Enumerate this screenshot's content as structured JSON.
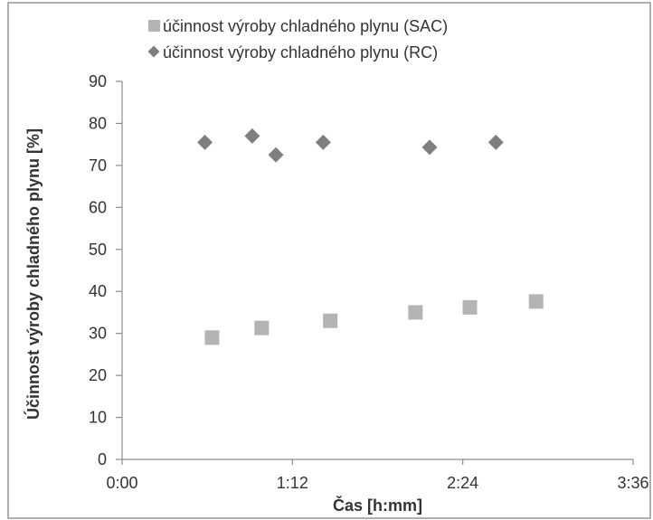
{
  "colors": {
    "sac": "#b4b4b4",
    "rc": "#7f7f7f",
    "axis": "#8c8c8c",
    "text": "#333333"
  },
  "chart_data": {
    "type": "scatter",
    "xlabel": "Čas [h:mm]",
    "ylabel": "Účinnost výroby chladného plynu [%]",
    "x_unit": "h:mm",
    "xlim": [
      "0:00",
      "3:36"
    ],
    "ylim": [
      0,
      90
    ],
    "x_ticks": [
      "0:00",
      "1:12",
      "2:24",
      "3:36"
    ],
    "y_ticks": [
      0,
      10,
      20,
      30,
      40,
      50,
      60,
      70,
      80,
      90
    ],
    "grid": false,
    "legend_position": "top",
    "series": [
      {
        "name": "účinnost výroby chladného plynu (SAC)",
        "marker": "square",
        "color": "#b4b4b4",
        "points": [
          {
            "x": "0:38",
            "y": 29.0
          },
          {
            "x": "0:59",
            "y": 31.3
          },
          {
            "x": "1:28",
            "y": 33.0
          },
          {
            "x": "2:04",
            "y": 35.0
          },
          {
            "x": "2:27",
            "y": 36.2
          },
          {
            "x": "2:55",
            "y": 37.6
          }
        ]
      },
      {
        "name": "účinnost výroby chladného plynu (RC)",
        "marker": "diamond",
        "color": "#7f7f7f",
        "points": [
          {
            "x": "0:35",
            "y": 75.5
          },
          {
            "x": "0:55",
            "y": 77.0
          },
          {
            "x": "1:05",
            "y": 72.5
          },
          {
            "x": "1:25",
            "y": 75.5
          },
          {
            "x": "2:10",
            "y": 74.3
          },
          {
            "x": "2:38",
            "y": 75.5
          }
        ]
      }
    ]
  }
}
